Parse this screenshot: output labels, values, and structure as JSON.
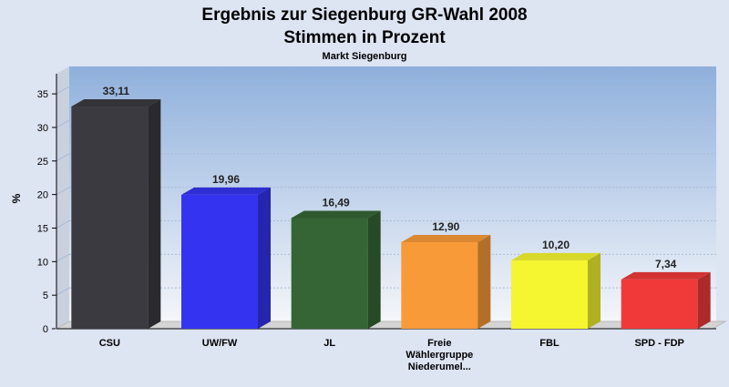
{
  "chart_data": {
    "type": "bar",
    "title": "Ergebnis zur Siegenburg GR-Wahl  2008",
    "subtitle": "Stimmen in Prozent",
    "caption": "Markt Siegenburg",
    "ylabel": "%",
    "xlabel": "",
    "ylim": [
      0,
      38
    ],
    "yticks": [
      0,
      5,
      10,
      15,
      20,
      25,
      30,
      35
    ],
    "grid": true,
    "categories": [
      [
        "CSU"
      ],
      [
        "UW/FW"
      ],
      [
        "JL"
      ],
      [
        "Freie",
        "Wählergruppe",
        "Niederumel..."
      ],
      [
        "FBL"
      ],
      [
        "SPD - FDP"
      ]
    ],
    "values": [
      33.11,
      19.96,
      16.49,
      12.9,
      10.2,
      7.34
    ],
    "value_labels": [
      "33,11",
      "19,96",
      "16,49",
      "12,90",
      "10,20",
      "7,34"
    ],
    "colors": [
      "#3a3a40",
      "#3434f0",
      "#356535",
      "#f89a38",
      "#f5f530",
      "#f03a3a"
    ]
  }
}
